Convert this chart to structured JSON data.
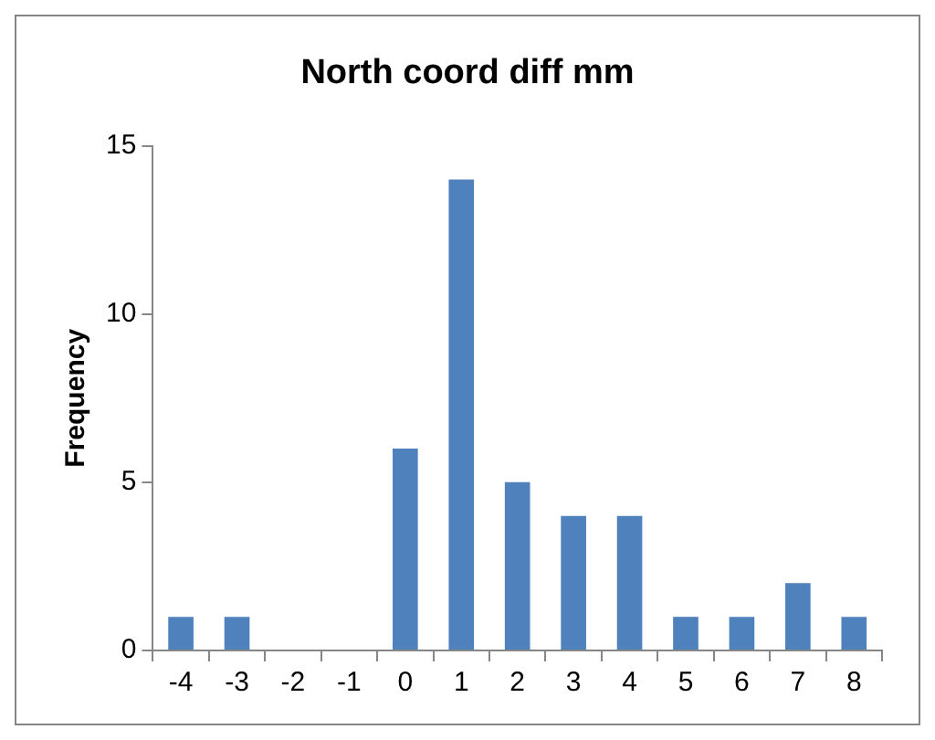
{
  "chart_data": {
    "type": "bar",
    "title": "North coord diff mm",
    "ylabel": "Frequency",
    "categories": [
      "-4",
      "-3",
      "-2",
      "-1",
      "0",
      "1",
      "2",
      "3",
      "4",
      "5",
      "6",
      "7",
      "8"
    ],
    "values": [
      1,
      1,
      0,
      0,
      6,
      14,
      5,
      4,
      4,
      1,
      1,
      2,
      1
    ],
    "color": "#4f81bd",
    "ylim": [
      0,
      15
    ],
    "yticks": [
      0,
      5,
      10,
      15
    ],
    "grid": false,
    "legend": false
  }
}
